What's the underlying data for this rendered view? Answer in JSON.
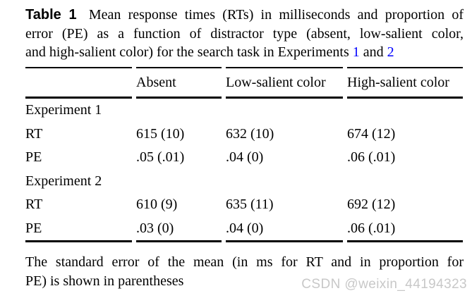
{
  "colors": {
    "text": "#000000",
    "rule": "#000000",
    "link": "#0000ff",
    "watermark": "#c8c8c8"
  },
  "caption": {
    "label": "Table 1",
    "line1": "Mean response times (RTs) in milliseconds and proportion of",
    "line2": "error (PE) as a function of distractor type (absent, low-salient color,",
    "line3_prefix": "and high-salient color) for the search task in Experiments",
    "link_exp1": "1",
    "line3_conj": "and",
    "link_exp2": "2"
  },
  "table": {
    "columns": [
      "",
      "Absent",
      "Low-salient color",
      "High-salient color"
    ],
    "sections": [
      {
        "title": "Experiment 1",
        "rows": [
          {
            "label": "RT",
            "values": [
              "615 (10)",
              "632 (10)",
              "674 (12)"
            ]
          },
          {
            "label": "PE",
            "values": [
              ".05 (.01)",
              ".04 (0)",
              ".06 (.01)"
            ]
          }
        ]
      },
      {
        "title": "Experiment 2",
        "rows": [
          {
            "label": "RT",
            "values": [
              "610 (9)",
              "635 (11)",
              "692 (12)"
            ]
          },
          {
            "label": "PE",
            "values": [
              ".03 (0)",
              ".04 (0)",
              ".06 (.01)"
            ]
          }
        ]
      }
    ]
  },
  "footnote": {
    "line1": "The standard error of the mean (in ms for RT and in proportion for",
    "line2": "PE) is shown in parentheses"
  },
  "watermark": "CSDN @weixin_44194323"
}
